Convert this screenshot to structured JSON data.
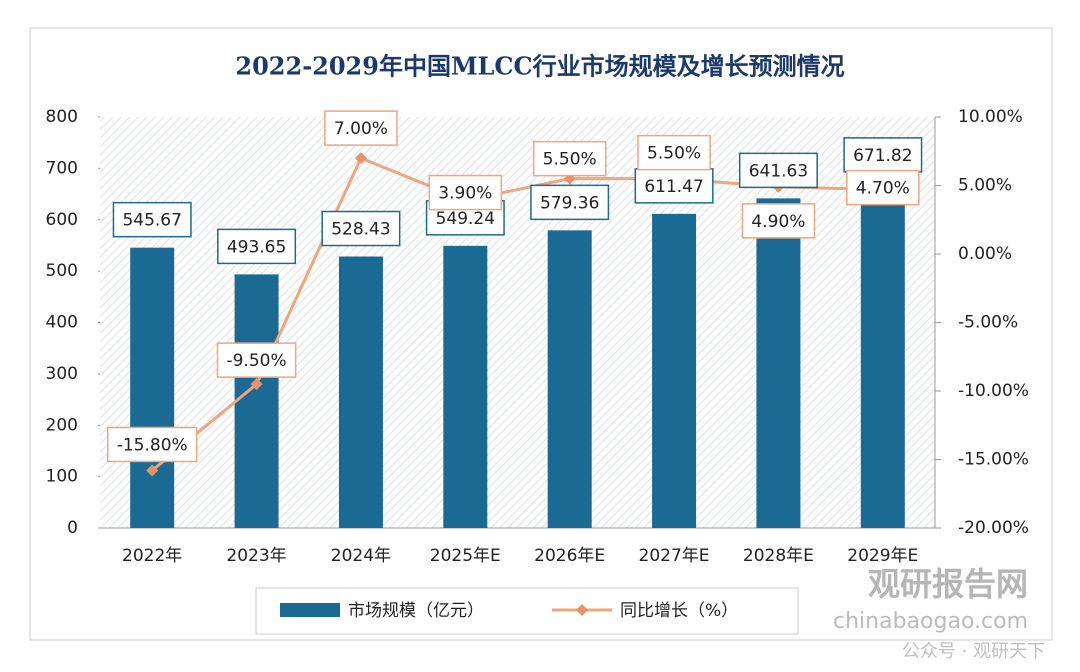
{
  "chart_data": {
    "type": "bar-line",
    "title": "2022-2029年中国MLCC行业市场规模及增长预测情况",
    "categories": [
      "2022年",
      "2023年",
      "2024年",
      "2025年E",
      "2026年E",
      "2027年E",
      "2028年E",
      "2029年E"
    ],
    "series": [
      {
        "name": "市场规模（亿元）",
        "color": "#1a6a93",
        "type": "bar",
        "values": [
          545.67,
          493.65,
          528.43,
          549.24,
          579.36,
          611.47,
          641.63,
          671.82
        ]
      },
      {
        "name": "同比增长（%）",
        "color": "#f0a57c",
        "type": "line",
        "axis": "y2",
        "values": [
          -15.8,
          -9.5,
          7.0,
          3.9,
          5.5,
          5.5,
          4.9,
          4.7
        ],
        "value_labels": [
          "-15.80%",
          "-9.50%",
          "7.00%",
          "3.90%",
          "5.50%",
          "5.50%",
          "4.90%",
          "4.70%"
        ]
      }
    ],
    "ylim": [
      0,
      800
    ],
    "yticks": [
      0,
      100,
      200,
      300,
      400,
      500,
      600,
      700,
      800
    ],
    "y2lim": [
      -20,
      10
    ],
    "y2ticks": [
      {
        "value": -20,
        "label": "-20.00%"
      },
      {
        "value": -15,
        "label": "-15.00%"
      },
      {
        "value": -10,
        "label": "-10.00%"
      },
      {
        "value": -5,
        "label": "-5.00%"
      },
      {
        "value": 0,
        "label": "0.00%"
      },
      {
        "value": 5,
        "label": "5.00%"
      },
      {
        "value": 10,
        "label": "10.00%"
      }
    ],
    "legend": "bottom",
    "watermark": [
      "观研报告网",
      "chinabaogao.com",
      "公众号 · 观研天下"
    ]
  }
}
